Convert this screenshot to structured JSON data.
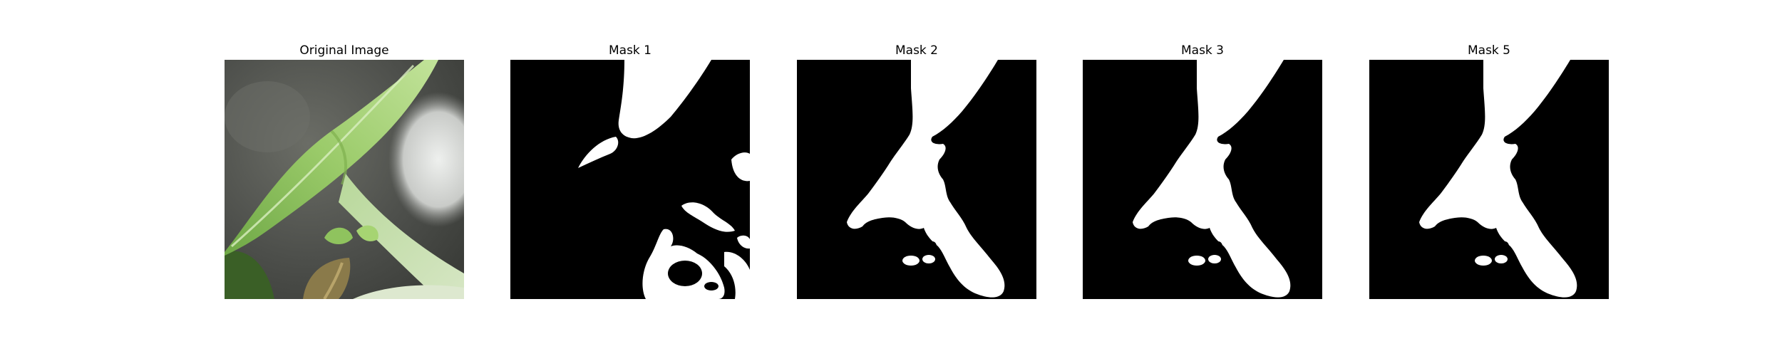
{
  "panels": [
    {
      "title": "Original Image",
      "kind": "photo"
    },
    {
      "title": "Mask 1",
      "kind": "mask"
    },
    {
      "title": "Mask 2",
      "kind": "mask"
    },
    {
      "title": "Mask 3",
      "kind": "mask"
    },
    {
      "title": "Mask 5",
      "kind": "mask"
    }
  ],
  "colors": {
    "background": "#ffffff",
    "mask_background": "#000000",
    "mask_foreground": "#ffffff",
    "leaf_light": "#a9d27a",
    "leaf_mid": "#7fb04f",
    "leaf_dark": "#3f6e2a",
    "backdrop_gray": "#5a5c58",
    "stem_pale": "#cfe0b8"
  }
}
